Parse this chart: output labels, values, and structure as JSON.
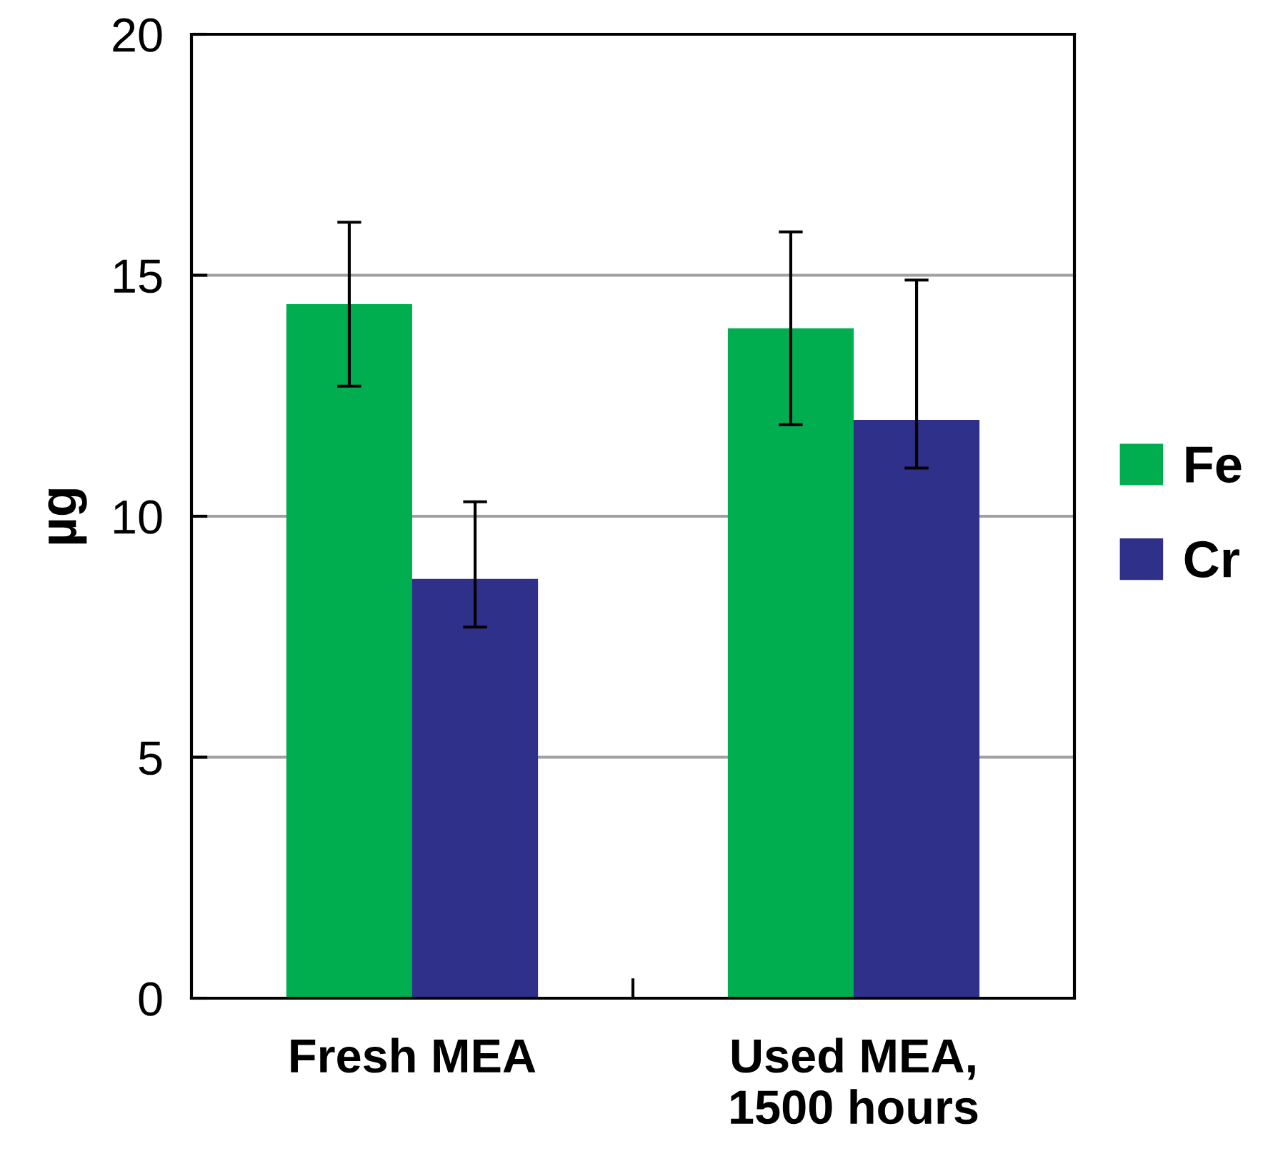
{
  "chart_data": {
    "type": "bar",
    "ylabel": "µg",
    "categories": [
      "Fresh MEA",
      "Used MEA,\n1500 hours"
    ],
    "series": [
      {
        "name": "Fe",
        "color": "#00ad4f",
        "values": [
          14.4,
          13.9
        ],
        "errors": [
          [
            12.7,
            16.1
          ],
          [
            11.9,
            15.9
          ]
        ]
      },
      {
        "name": "Cr",
        "color": "#2e3089",
        "values": [
          8.7,
          12.0
        ],
        "errors": [
          [
            7.7,
            10.3
          ],
          [
            11.0,
            14.9
          ]
        ]
      }
    ],
    "ylim": [
      0,
      20
    ],
    "yticks": [
      0,
      5,
      10,
      15,
      20
    ],
    "grid": "y",
    "legend": "right"
  }
}
